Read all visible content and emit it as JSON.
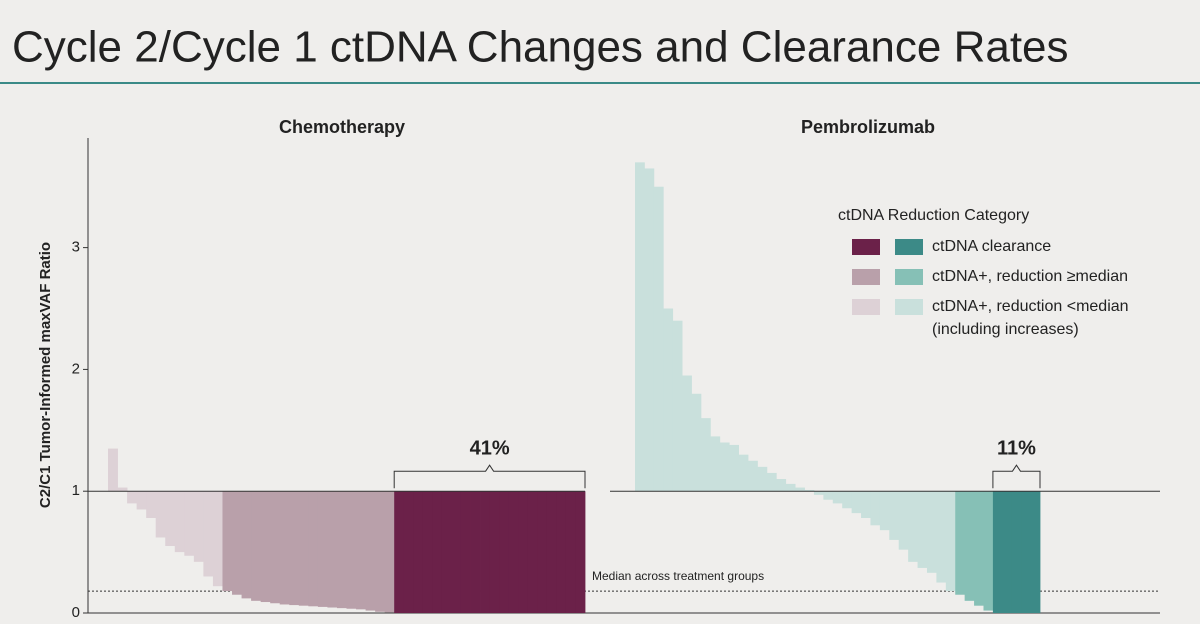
{
  "chart_data": {
    "type": "bar",
    "title": "Cycle 2/Cycle 1 ctDNA Changes and Clearance Rates",
    "y_label": "C2/C1 Tumor-Informed maxVAF Ratio",
    "ylim": [
      0,
      3.9
    ],
    "yticks": [
      0,
      1,
      2,
      3
    ],
    "baseline": 1,
    "median": {
      "value": 0.18,
      "label": "Median across treatment groups"
    },
    "legend": {
      "title": "ctDNA Reduction Category",
      "entries": [
        [
          "ctDNA clearance"
        ],
        [
          "ctDNA+, reduction ≥median"
        ],
        [
          "ctDNA+, reduction <median",
          "(including increases)"
        ]
      ]
    },
    "groups": [
      {
        "name": "Chemotherapy",
        "color": "#6b2149",
        "clearance_label": "41%",
        "series": [
          {
            "color": "#6b2149",
            "values": [
              0,
              0,
              0,
              0,
              0,
              0,
              0,
              0,
              0,
              0,
              0,
              0,
              0,
              0,
              0,
              0,
              0,
              0,
              0,
              0
            ]
          },
          {
            "color": "#b9a0aa",
            "values": [
              0.18,
              0.15,
              0.12,
              0.1,
              0.09,
              0.08,
              0.07,
              0.065,
              0.06,
              0.055,
              0.05,
              0.045,
              0.04,
              0.035,
              0.03,
              0.02,
              0.01,
              0.005
            ]
          },
          {
            "color": "#ddd1d6",
            "values": [
              1.35,
              1.03,
              0.9,
              0.85,
              0.78,
              0.62,
              0.55,
              0.5,
              0.47,
              0.42,
              0.3,
              0.22
            ]
          }
        ]
      },
      {
        "name": "Pembrolizumab",
        "color": "#3a8784",
        "clearance_label": "11%",
        "series": [
          {
            "color": "#3c8a87",
            "values": [
              0,
              0,
              0,
              0,
              0
            ]
          },
          {
            "color": "#86c0b6",
            "values": [
              0.15,
              0.1,
              0.06,
              0.02
            ]
          },
          {
            "color": "#c9e0dc",
            "values": [
              3.7,
              3.65,
              3.5,
              2.5,
              2.4,
              1.95,
              1.8,
              1.6,
              1.45,
              1.4,
              1.38,
              1.3,
              1.25,
              1.2,
              1.15,
              1.1,
              1.06,
              1.03,
              1.01,
              0.97,
              0.93,
              0.9,
              0.86,
              0.82,
              0.78,
              0.72,
              0.68,
              0.6,
              0.52,
              0.42,
              0.37,
              0.33,
              0.25,
              0.18
            ]
          }
        ]
      }
    ]
  }
}
